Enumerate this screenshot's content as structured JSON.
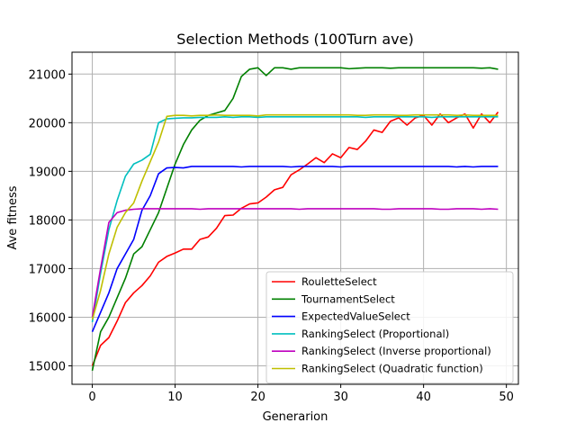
{
  "chart_data": {
    "type": "line",
    "title": "Selection Methods (100Turn ave)",
    "xlabel": "Generarion",
    "ylabel": "Ave fitness",
    "xlim": [
      -2.45,
      51.45
    ],
    "ylim": [
      14620,
      21450
    ],
    "xticks": [
      0,
      10,
      20,
      30,
      40,
      50
    ],
    "yticks": [
      15000,
      16000,
      17000,
      18000,
      19000,
      20000,
      21000
    ],
    "grid": true,
    "legend_position": "lower-right",
    "series": [
      {
        "name": "RouletteSelect",
        "color": "#ff0000",
        "values": [
          15000,
          15420,
          15580,
          15920,
          16300,
          16500,
          16650,
          16850,
          17130,
          17250,
          17320,
          17400,
          17400,
          17600,
          17650,
          17830,
          18090,
          18100,
          18240,
          18330,
          18350,
          18470,
          18620,
          18670,
          18930,
          19030,
          19150,
          19280,
          19180,
          19360,
          19280,
          19490,
          19450,
          19620,
          19850,
          19800,
          20030,
          20100,
          19950,
          20100,
          20150,
          19950,
          20180,
          20000,
          20100,
          20180,
          19890,
          20180,
          20000,
          20220
        ]
      },
      {
        "name": "TournamentSelect",
        "color": "#008000",
        "values": [
          14900,
          15700,
          16000,
          16400,
          16800,
          17300,
          17450,
          17800,
          18150,
          18650,
          19150,
          19550,
          19850,
          20050,
          20150,
          20200,
          20250,
          20500,
          20950,
          21100,
          21130,
          20970,
          21130,
          21130,
          21100,
          21130,
          21130,
          21130,
          21130,
          21130,
          21130,
          21110,
          21120,
          21130,
          21130,
          21130,
          21120,
          21130,
          21130,
          21130,
          21130,
          21130,
          21130,
          21130,
          21130,
          21130,
          21130,
          21120,
          21130,
          21100
        ]
      },
      {
        "name": "ExpectedValueSelect",
        "color": "#0000ff",
        "values": [
          15700,
          16100,
          16500,
          17000,
          17300,
          17600,
          18200,
          18500,
          18950,
          19070,
          19080,
          19070,
          19100,
          19100,
          19100,
          19100,
          19100,
          19100,
          19090,
          19100,
          19100,
          19100,
          19100,
          19100,
          19090,
          19100,
          19100,
          19100,
          19100,
          19100,
          19090,
          19100,
          19100,
          19100,
          19100,
          19100,
          19100,
          19100,
          19100,
          19100,
          19100,
          19100,
          19100,
          19100,
          19090,
          19100,
          19090,
          19100,
          19100,
          19100
        ]
      },
      {
        "name": "RankingSelect (Proportional)",
        "color": "#00bfbf",
        "values": [
          15900,
          16900,
          17800,
          18400,
          18900,
          19150,
          19230,
          19350,
          20000,
          20080,
          20090,
          20100,
          20100,
          20110,
          20110,
          20110,
          20120,
          20110,
          20120,
          20120,
          20110,
          20120,
          20120,
          20120,
          20120,
          20120,
          20120,
          20120,
          20120,
          20120,
          20120,
          20120,
          20120,
          20110,
          20120,
          20120,
          20120,
          20120,
          20120,
          20120,
          20120,
          20110,
          20120,
          20120,
          20120,
          20120,
          20120,
          20120,
          20120,
          20120
        ]
      },
      {
        "name": "RankingSelect (Inverse proportional)",
        "color": "#bf00bf",
        "values": [
          16000,
          17000,
          17950,
          18150,
          18200,
          18220,
          18230,
          18230,
          18230,
          18230,
          18230,
          18230,
          18230,
          18220,
          18230,
          18230,
          18230,
          18230,
          18230,
          18230,
          18230,
          18230,
          18230,
          18230,
          18230,
          18220,
          18230,
          18230,
          18230,
          18230,
          18230,
          18230,
          18230,
          18230,
          18230,
          18220,
          18220,
          18230,
          18230,
          18230,
          18230,
          18230,
          18220,
          18220,
          18230,
          18230,
          18230,
          18220,
          18230,
          18220
        ]
      },
      {
        "name": "RankingSelect (Quadratic function)",
        "color": "#bfbf00",
        "values": [
          15950,
          16550,
          17300,
          17850,
          18150,
          18350,
          18800,
          19200,
          19600,
          20130,
          20150,
          20150,
          20140,
          20150,
          20150,
          20160,
          20150,
          20150,
          20150,
          20150,
          20140,
          20160,
          20160,
          20160,
          20160,
          20160,
          20160,
          20160,
          20160,
          20160,
          20160,
          20160,
          20150,
          20150,
          20160,
          20160,
          20160,
          20150,
          20150,
          20160,
          20160,
          20160,
          20160,
          20160,
          20150,
          20160,
          20150,
          20150,
          20150,
          20150
        ]
      }
    ]
  }
}
